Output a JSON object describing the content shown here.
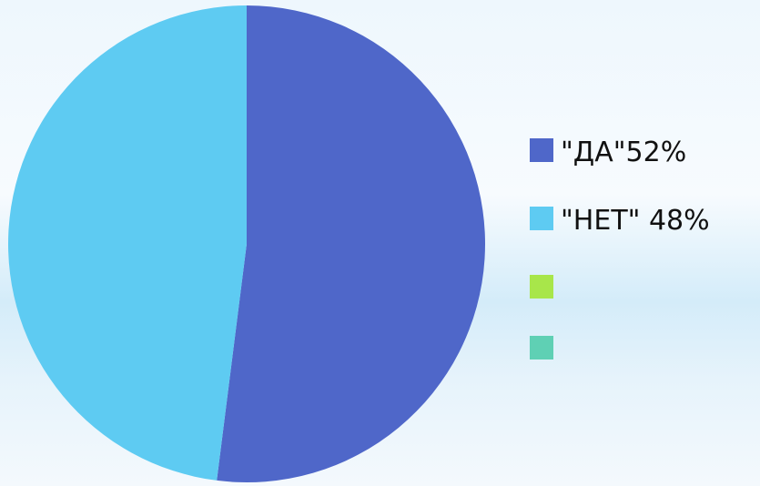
{
  "chart_data": {
    "type": "pie",
    "categories": [
      "\"ДА\"52%",
      "\"НЕТ\" 48%",
      "",
      ""
    ],
    "values": [
      52,
      48,
      0,
      0
    ],
    "colors": [
      "#4f67c9",
      "#5ecbf2",
      "#a8e64a",
      "#5fd0b4"
    ],
    "legend_position": "right"
  }
}
